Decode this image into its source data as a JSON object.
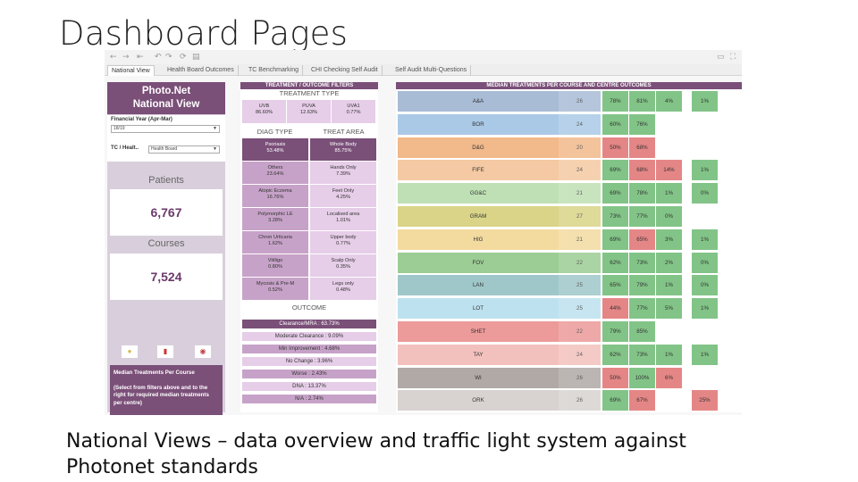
{
  "slide": {
    "title": "Dashboard Pages",
    "caption": "National Views – data overview and traffic light system against Photonet standards"
  },
  "tabs": [
    "National View",
    "Health Board Outcomes",
    "TC Benchmarking",
    "CHI Checking Self Audit",
    "Self Audit Multi-Questions"
  ],
  "left": {
    "brand_line1": "Photo.Net",
    "brand_line2": "National View",
    "financial_year_label": "Financial Year (Apr-Mar)",
    "financial_year_value": "18/19",
    "tc_label": "TC / Healt..",
    "tc_value": "Health Board",
    "patients_label": "Patients",
    "patients_value": "6,767",
    "courses_label": "Courses",
    "courses_value": "7,524",
    "info_title": "Median Treatments Per Course",
    "info_text": "(Select from filters above and to the right for required median treatments per centre)"
  },
  "middle": {
    "header": "TREATMENT / OUTCOME FILTERS",
    "treatment_type_title": "TREATMENT TYPE",
    "treatment_types": [
      {
        "name": "UVB",
        "pct": "86.60%"
      },
      {
        "name": "PUVA",
        "pct": "12.63%"
      },
      {
        "name": "UVA1",
        "pct": "0.77%"
      }
    ],
    "diag_type_title": "DIAG TYPE",
    "treat_area_title": "TREAT AREA",
    "diag_types": [
      {
        "name": "Psoriasis",
        "pct": "53.48%"
      },
      {
        "name": "Others",
        "pct": "23.64%"
      },
      {
        "name": "Atopic Eczema",
        "pct": "16.76%"
      },
      {
        "name": "Polymorphic LE",
        "pct": "3.28%"
      },
      {
        "name": "Chron Urticaria",
        "pct": "1.62%"
      },
      {
        "name": "Vitiligo",
        "pct": "0.80%"
      },
      {
        "name": "Mycosis & Pre-M",
        "pct": "0.52%"
      }
    ],
    "treat_areas": [
      {
        "name": "Whole Body",
        "pct": "85.75%"
      },
      {
        "name": "Hands Only",
        "pct": "7.39%"
      },
      {
        "name": "Feet Only",
        "pct": "4.25%"
      },
      {
        "name": "Localised area",
        "pct": "1.01%"
      },
      {
        "name": "Upper body",
        "pct": "0.77%"
      },
      {
        "name": "Scalp Only",
        "pct": "0.35%"
      },
      {
        "name": "Legs only",
        "pct": "0.48%"
      }
    ],
    "outcome_title": "OUTCOME",
    "outcomes": [
      "Clearance/MRA : 63.73%",
      "Moderate Clearance : 9.09%",
      "Min Improvement : 4.68%",
      "No Change : 3.96%",
      "Worse : 2.43%",
      "DNA : 13.37%",
      "N/A : 2.74%"
    ]
  },
  "right": {
    "header": "MEDIAN TREATMENTS PER COURSE AND CENTRE OUTCOMES",
    "rows": [
      {
        "label": "A&A",
        "count": "26",
        "c1": "78%",
        "c2": "81%",
        "c3": "4%",
        "c4": "1%",
        "color": "#a9bcd6"
      },
      {
        "label": "BOR",
        "count": "24",
        "c1": "60%",
        "c2": "76%",
        "c3": "",
        "c4": "",
        "color": "#aac9e6"
      },
      {
        "label": "D&G",
        "count": "20",
        "c1": "50%",
        "c2": "68%",
        "c3": "",
        "c4": "",
        "color": "#f2b98a"
      },
      {
        "label": "FIFE",
        "count": "24",
        "c1": "69%",
        "c2": "68%",
        "c3": "14%",
        "c4": "1%",
        "color": "#f5c9a3"
      },
      {
        "label": "GG&C",
        "count": "21",
        "c1": "69%",
        "c2": "78%",
        "c3": "1%",
        "c4": "0%",
        "color": "#bfe0b4"
      },
      {
        "label": "GRAM",
        "count": "27",
        "c1": "73%",
        "c2": "77%",
        "c3": "0%",
        "c4": "",
        "color": "#d9d487"
      },
      {
        "label": "HIG",
        "count": "21",
        "c1": "69%",
        "c2": "65%",
        "c3": "3%",
        "c4": "1%",
        "color": "#f3dba0"
      },
      {
        "label": "FOV",
        "count": "22",
        "c1": "62%",
        "c2": "73%",
        "c3": "2%",
        "c4": "0%",
        "color": "#9ccd94"
      },
      {
        "label": "LAN",
        "count": "25",
        "c1": "65%",
        "c2": "79%",
        "c3": "1%",
        "c4": "0%",
        "color": "#9fc7c9"
      },
      {
        "label": "LOT",
        "count": "25",
        "c1": "44%",
        "c2": "77%",
        "c3": "5%",
        "c4": "1%",
        "color": "#bde1ef"
      },
      {
        "label": "SHET",
        "count": "22",
        "c1": "79%",
        "c2": "85%",
        "c3": "",
        "c4": "",
        "color": "#ec9a9a"
      },
      {
        "label": "TAY",
        "count": "24",
        "c1": "62%",
        "c2": "73%",
        "c3": "1%",
        "c4": "1%",
        "color": "#f3c1bd"
      },
      {
        "label": "WI",
        "count": "26",
        "c1": "50%",
        "c2": "100%",
        "c3": "6%",
        "c4": "",
        "color": "#b0a9a6"
      },
      {
        "label": "ORK",
        "count": "26",
        "c1": "69%",
        "c2": "67%",
        "c3": "",
        "c4": "25%",
        "color": "#d8d3d0"
      }
    ]
  },
  "colors": {
    "purple_dark": "#7a4f78",
    "purple_mid": "#c7a2c8",
    "purple_light": "#e6cde8",
    "traffic_green": "#82c487",
    "traffic_red": "#e58686"
  }
}
